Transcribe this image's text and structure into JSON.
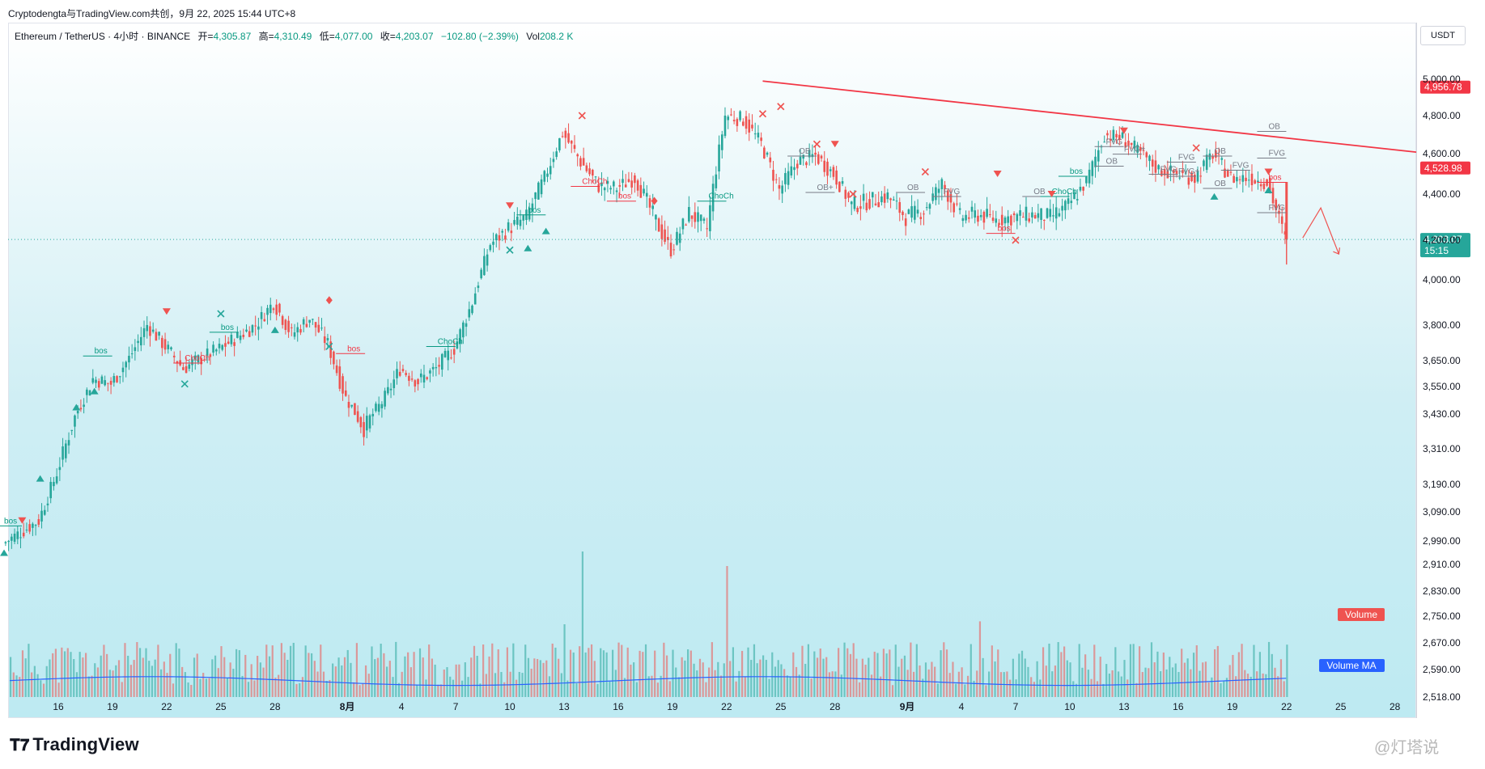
{
  "header": {
    "snapshot_line": "Cryptodengta与TradingView.com共创，9月 22, 2025 15:44 UTC+8"
  },
  "legend": {
    "symbol": "Ethereum / TetherUS · 4小时 · BINANCE",
    "open_label": "开=",
    "open": "4,305.87",
    "high_label": "高=",
    "high": "4,310.49",
    "low_label": "低=",
    "low": "4,077.00",
    "close_label": "收=",
    "close": "4,203.07",
    "change": "−102.80 (−2.39%)",
    "vol_label": "Vol",
    "vol": "208.2 K"
  },
  "currency": "USDT",
  "branding": {
    "logo": "TradingView",
    "watermark": "@灯塔说"
  },
  "colors": {
    "up": "#26a69a",
    "down": "#ef5350",
    "trendline": "#f23645",
    "bullish_label": "#089981",
    "bearish_label": "#f23645",
    "volume_ma": "#2962ff",
    "price_label_bg": "#26a69a"
  },
  "chart_data": {
    "type": "candlestick",
    "symbol": "Ethereum / TetherUS",
    "timeframe": "4小时",
    "exchange": "BINANCE",
    "y_axis_ticks": [
      5000,
      4800,
      4600,
      4400,
      4200,
      4000,
      3800,
      3650,
      3550,
      3430,
      3310,
      3190,
      3090,
      2990,
      2910,
      2830,
      2750,
      2670,
      2590,
      2518
    ],
    "y_axis_tick_labels": [
      "5,000.00",
      "4,800.00",
      "4,600.00",
      "4,400.00",
      "4,200.00",
      "4,000.00",
      "3,800.00",
      "3,650.00",
      "3,550.00",
      "3,430.00",
      "3,310.00",
      "3,190.00",
      "3,090.00",
      "2,990.00",
      "2,910.00",
      "2,830.00",
      "2,750.00",
      "2,670.00",
      "2,590.00",
      "2,518.00"
    ],
    "ylim": [
      2518,
      5000
    ],
    "x_axis_ticks": [
      "16",
      "19",
      "22",
      "25",
      "28",
      "8月",
      "4",
      "7",
      "10",
      "13",
      "16",
      "19",
      "22",
      "25",
      "28",
      "9月",
      "4",
      "7",
      "10",
      "13",
      "16",
      "19",
      "22",
      "25",
      "28"
    ],
    "price_labels": [
      {
        "text": "4,956.78",
        "value": 4956.78,
        "color": "#f23645"
      },
      {
        "text": "4,528.98",
        "value": 4528.98,
        "color": "#f23645"
      },
      {
        "text": "4,203.07",
        "sub": "15:15",
        "value": 4203.07,
        "color": "#26a69a"
      }
    ],
    "current_price": 4203.07,
    "price_path": [
      {
        "date": "Jul 13",
        "close": 2980
      },
      {
        "date": "Jul 14",
        "close": 3020
      },
      {
        "date": "Jul 15",
        "close": 3060
      },
      {
        "date": "Jul 16",
        "close": 3230
      },
      {
        "date": "Jul 17",
        "close": 3420
      },
      {
        "date": "Jul 18",
        "close": 3580
      },
      {
        "date": "Jul 19",
        "close": 3560
      },
      {
        "date": "Jul 20",
        "close": 3660
      },
      {
        "date": "Jul 21",
        "close": 3800
      },
      {
        "date": "Jul 22",
        "close": 3710
      },
      {
        "date": "Jul 23",
        "close": 3620
      },
      {
        "date": "Jul 24",
        "close": 3660
      },
      {
        "date": "Jul 25",
        "close": 3700
      },
      {
        "date": "Jul 26",
        "close": 3750
      },
      {
        "date": "Jul 27",
        "close": 3800
      },
      {
        "date": "Jul 28",
        "close": 3900
      },
      {
        "date": "Jul 29",
        "close": 3760
      },
      {
        "date": "Jul 30",
        "close": 3830
      },
      {
        "date": "Jul 31",
        "close": 3720
      },
      {
        "date": "Aug 1",
        "close": 3500
      },
      {
        "date": "Aug 2",
        "close": 3380
      },
      {
        "date": "Aug 3",
        "close": 3480
      },
      {
        "date": "Aug 4",
        "close": 3620
      },
      {
        "date": "Aug 5",
        "close": 3570
      },
      {
        "date": "Aug 6",
        "close": 3620
      },
      {
        "date": "Aug 7",
        "close": 3700
      },
      {
        "date": "Aug 8",
        "close": 3900
      },
      {
        "date": "Aug 9",
        "close": 4180
      },
      {
        "date": "Aug 10",
        "close": 4250
      },
      {
        "date": "Aug 11",
        "close": 4300
      },
      {
        "date": "Aug 12",
        "close": 4480
      },
      {
        "date": "Aug 13",
        "close": 4710
      },
      {
        "date": "Aug 14",
        "close": 4560
      },
      {
        "date": "Aug 15",
        "close": 4440
      },
      {
        "date": "Aug 16",
        "close": 4430
      },
      {
        "date": "Aug 17",
        "close": 4480
      },
      {
        "date": "Aug 18",
        "close": 4310
      },
      {
        "date": "Aug 19",
        "close": 4150
      },
      {
        "date": "Aug 20",
        "close": 4320
      },
      {
        "date": "Aug 21",
        "close": 4250
      },
      {
        "date": "Aug 22",
        "close": 4800
      },
      {
        "date": "Aug 23",
        "close": 4780
      },
      {
        "date": "Aug 24",
        "close": 4650
      },
      {
        "date": "Aug 25",
        "close": 4420
      },
      {
        "date": "Aug 26",
        "close": 4560
      },
      {
        "date": "Aug 27",
        "close": 4590
      },
      {
        "date": "Aug 28",
        "close": 4500
      },
      {
        "date": "Aug 29",
        "close": 4350
      },
      {
        "date": "Aug 30",
        "close": 4370
      },
      {
        "date": "Aug 31",
        "close": 4390
      },
      {
        "date": "Sep 1",
        "close": 4300
      },
      {
        "date": "Sep 2",
        "close": 4330
      },
      {
        "date": "Sep 3",
        "close": 4450
      },
      {
        "date": "Sep 4",
        "close": 4300
      },
      {
        "date": "Sep 5",
        "close": 4310
      },
      {
        "date": "Sep 6",
        "close": 4290
      },
      {
        "date": "Sep 7",
        "close": 4300
      },
      {
        "date": "Sep 8",
        "close": 4310
      },
      {
        "date": "Sep 9",
        "close": 4300
      },
      {
        "date": "Sep 10",
        "close": 4350
      },
      {
        "date": "Sep 11",
        "close": 4460
      },
      {
        "date": "Sep 12",
        "close": 4700
      },
      {
        "date": "Sep 13",
        "close": 4680
      },
      {
        "date": "Sep 14",
        "close": 4600
      },
      {
        "date": "Sep 15",
        "close": 4520
      },
      {
        "date": "Sep 16",
        "close": 4500
      },
      {
        "date": "Sep 17",
        "close": 4480
      },
      {
        "date": "Sep 18",
        "close": 4600
      },
      {
        "date": "Sep 19",
        "close": 4480
      },
      {
        "date": "Sep 20",
        "close": 4480
      },
      {
        "date": "Sep 21",
        "close": 4460
      },
      {
        "date": "Sep 22",
        "close": 4203
      }
    ],
    "trendline": [
      {
        "date": "Aug 24",
        "value": 4990
      },
      {
        "date": "Sep 28",
        "value": 4620
      }
    ],
    "annotations": [
      {
        "text": "bos",
        "date": "Jul 13",
        "value": 3050,
        "color": "#089981"
      },
      {
        "text": "bos",
        "date": "Jul 18",
        "value": 3680,
        "color": "#089981"
      },
      {
        "text": "ChoCh",
        "date": "Jul 23",
        "value": 3650,
        "color": "#f23645"
      },
      {
        "text": "bos",
        "date": "Jul 25",
        "value": 3780,
        "color": "#089981"
      },
      {
        "text": "bos",
        "date": "Aug 1",
        "value": 3690,
        "color": "#f23645"
      },
      {
        "text": "ChoCh",
        "date": "Aug 6",
        "value": 3720,
        "color": "#089981"
      },
      {
        "text": "bos",
        "date": "Aug 11",
        "value": 4320,
        "color": "#089981"
      },
      {
        "text": "ChoCh",
        "date": "Aug 14",
        "value": 4450,
        "color": "#f23645"
      },
      {
        "text": "bos",
        "date": "Aug 16",
        "value": 4380,
        "color": "#f23645"
      },
      {
        "text": "ChoCh",
        "date": "Aug 21",
        "value": 4380,
        "color": "#089981"
      },
      {
        "text": "OB",
        "date": "Aug 26",
        "value": 4600,
        "color": "#787b86"
      },
      {
        "text": "OB+",
        "date": "Aug 27",
        "value": 4420,
        "color": "#787b86"
      },
      {
        "text": "OB",
        "date": "Sep 1",
        "value": 4420,
        "color": "#787b86"
      },
      {
        "text": "FVG",
        "date": "Sep 3",
        "value": 4400,
        "color": "#787b86"
      },
      {
        "text": "bos",
        "date": "Sep 6",
        "value": 4240,
        "color": "#f23645"
      },
      {
        "text": "OB",
        "date": "Sep 8",
        "value": 4400,
        "color": "#787b86"
      },
      {
        "text": "ChoCh",
        "date": "Sep 9",
        "value": 4400,
        "color": "#089981"
      },
      {
        "text": "bos",
        "date": "Sep 10",
        "value": 4500,
        "color": "#089981"
      },
      {
        "text": "FVG",
        "date": "Sep 12",
        "value": 4650,
        "color": "#787b86"
      },
      {
        "text": "OB",
        "date": "Sep 12",
        "value": 4550,
        "color": "#787b86"
      },
      {
        "text": "FVG+",
        "date": "Sep 13",
        "value": 4610,
        "color": "#787b86"
      },
      {
        "text": "FVG",
        "date": "Sep 15",
        "value": 4510,
        "color": "#787b86"
      },
      {
        "text": "FVG",
        "date": "Sep 16",
        "value": 4570,
        "color": "#787b86"
      },
      {
        "text": "FVG+",
        "date": "Sep 16",
        "value": 4500,
        "color": "#787b86"
      },
      {
        "text": "OB",
        "date": "Sep 18",
        "value": 4600,
        "color": "#787b86"
      },
      {
        "text": "OB",
        "date": "Sep 18",
        "value": 4440,
        "color": "#787b86"
      },
      {
        "text": "FVG",
        "date": "Sep 19",
        "value": 4530,
        "color": "#787b86"
      },
      {
        "text": "OB",
        "date": "Sep 21",
        "value": 4730,
        "color": "#787b86"
      },
      {
        "text": "FVG",
        "date": "Sep 21",
        "value": 4590,
        "color": "#787b86"
      },
      {
        "text": "bos",
        "date": "Sep 21",
        "value": 4470,
        "color": "#f23645"
      },
      {
        "text": "FVG",
        "date": "Sep 21",
        "value": 4330,
        "color": "#787b86"
      }
    ],
    "markers": [
      {
        "shape": "triangle-down",
        "date": "Jul 14",
        "value": 3060
      },
      {
        "shape": "triangle-up",
        "date": "Jul 13",
        "value": 2950
      },
      {
        "shape": "triangle-up",
        "date": "Jul 15",
        "value": 3210
      },
      {
        "shape": "triangle-up",
        "date": "Jul 17",
        "value": 3460
      },
      {
        "shape": "triangle-up",
        "date": "Jul 18",
        "value": 3530
      },
      {
        "shape": "triangle-down",
        "date": "Jul 22",
        "value": 3860
      },
      {
        "shape": "x",
        "date": "Jul 23",
        "value": 3560
      },
      {
        "shape": "x",
        "date": "Jul 25",
        "value": 3850
      },
      {
        "shape": "triangle-up",
        "date": "Jul 28",
        "value": 3780
      },
      {
        "shape": "diamond",
        "date": "Jul 31",
        "value": 3910
      },
      {
        "shape": "x",
        "date": "Jul 31",
        "value": 3710
      },
      {
        "shape": "triangle-down",
        "date": "Aug 10",
        "value": 4350
      },
      {
        "shape": "x",
        "date": "Aug 10",
        "value": 4150
      },
      {
        "shape": "triangle-up",
        "date": "Aug 11",
        "value": 4160
      },
      {
        "shape": "triangle-up",
        "date": "Aug 12",
        "value": 4240
      },
      {
        "shape": "x",
        "date": "Aug 14",
        "value": 4800
      },
      {
        "shape": "diamond",
        "date": "Aug 18",
        "value": 4370
      },
      {
        "shape": "x",
        "date": "Aug 24",
        "value": 4810
      },
      {
        "shape": "x",
        "date": "Aug 25",
        "value": 4850
      },
      {
        "shape": "x",
        "date": "Aug 27",
        "value": 4650
      },
      {
        "shape": "triangle-down",
        "date": "Aug 28",
        "value": 4650
      },
      {
        "shape": "x",
        "date": "Aug 29",
        "value": 4400
      },
      {
        "shape": "x",
        "date": "Sep 2",
        "value": 4510
      },
      {
        "shape": "triangle-down",
        "date": "Sep 6",
        "value": 4500
      },
      {
        "shape": "x",
        "date": "Sep 7",
        "value": 4200
      },
      {
        "shape": "triangle-down",
        "date": "Sep 9",
        "value": 4400
      },
      {
        "shape": "triangle-down",
        "date": "Sep 13",
        "value": 4720
      },
      {
        "shape": "x",
        "date": "Sep 17",
        "value": 4630
      },
      {
        "shape": "triangle-up",
        "date": "Sep 18",
        "value": 4390
      },
      {
        "shape": "triangle-down",
        "date": "Sep 21",
        "value": 4510
      },
      {
        "shape": "triangle-up",
        "date": "Sep 21",
        "value": 4420
      }
    ],
    "projection_arrow": [
      {
        "date": "Sep 22",
        "value": 4210
      },
      {
        "date": "Sep 23",
        "value": 4340
      },
      {
        "date": "Sep 24",
        "value": 4130
      }
    ],
    "volume_pane": {
      "legend_labels": [
        "Volume",
        "Volume MA"
      ],
      "spikes": [
        {
          "date": "Aug 14",
          "relative": 1.0
        },
        {
          "date": "Aug 22",
          "relative": 0.9
        },
        {
          "date": "Aug 13",
          "relative": 0.5
        },
        {
          "date": "Sep 5",
          "relative": 0.52
        },
        {
          "date": "Sep 22",
          "relative": 0.36
        }
      ]
    }
  }
}
